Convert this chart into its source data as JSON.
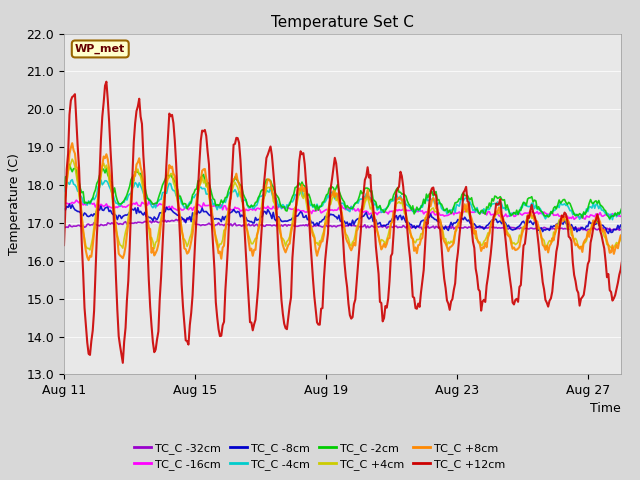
{
  "title": "Temperature Set C",
  "xlabel": "Time",
  "ylabel": "Temperature (C)",
  "ylim": [
    13.0,
    22.0
  ],
  "yticks": [
    13.0,
    14.0,
    15.0,
    16.0,
    17.0,
    18.0,
    19.0,
    20.0,
    21.0,
    22.0
  ],
  "xtick_labels": [
    "Aug 11",
    "Aug 15",
    "Aug 19",
    "Aug 23",
    "Aug 27"
  ],
  "bg_color": "#e8e8e8",
  "plot_bg": "#f0f0f0",
  "annotation_text": "WP_met",
  "annotation_box_color": "#ffffcc",
  "annotation_box_edge": "#996600",
  "series": {
    "TC_C -32cm": {
      "color": "#9900cc",
      "lw": 1.2
    },
    "TC_C -16cm": {
      "color": "#ff00ff",
      "lw": 1.2
    },
    "TC_C -8cm": {
      "color": "#0000cc",
      "lw": 1.2
    },
    "TC_C -4cm": {
      "color": "#00cccc",
      "lw": 1.2
    },
    "TC_C -2cm": {
      "color": "#00cc00",
      "lw": 1.2
    },
    "TC_C +4cm": {
      "color": "#cccc00",
      "lw": 1.2
    },
    "TC_C +8cm": {
      "color": "#ff8800",
      "lw": 1.5
    },
    "TC_C +12cm": {
      "color": "#cc0000",
      "lw": 1.5
    }
  }
}
